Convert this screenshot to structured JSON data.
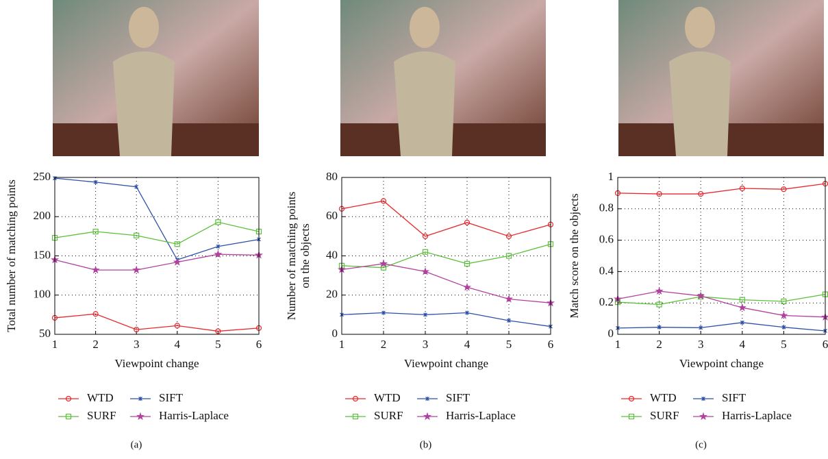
{
  "chart_data": [
    {
      "type": "line",
      "caption": "(a)",
      "xlabel": "Viewpoint change",
      "ylabel": [
        "Total number of matching points"
      ],
      "x": [
        1,
        2,
        3,
        4,
        5,
        6
      ],
      "xlim": [
        1,
        6
      ],
      "xticks": [
        1,
        2,
        3,
        4,
        5,
        6
      ],
      "ylim": [
        50,
        250
      ],
      "yticks": [
        50,
        100,
        150,
        200,
        250
      ],
      "grid": true,
      "legend": "bottom",
      "series": [
        {
          "name": "WTD",
          "color": "#e8262b",
          "marker": "circle",
          "values": [
            71,
            76,
            56,
            61,
            54,
            58
          ]
        },
        {
          "name": "SIFT",
          "color": "#2b4fa8",
          "marker": "x",
          "values": [
            249,
            244,
            238,
            145,
            162,
            171
          ]
        },
        {
          "name": "SURF",
          "color": "#5cbf3a",
          "marker": "square",
          "values": [
            173,
            181,
            176,
            165,
            193,
            181
          ]
        },
        {
          "name": "Harris-Laplace",
          "color": "#b2409e",
          "marker": "star",
          "values": [
            145,
            132,
            132,
            142,
            152,
            151
          ]
        }
      ]
    },
    {
      "type": "line",
      "caption": "(b)",
      "xlabel": "Viewpoint change",
      "ylabel": [
        "Number of matching points",
        "on the objects"
      ],
      "x": [
        1,
        2,
        3,
        4,
        5,
        6
      ],
      "xlim": [
        1,
        6
      ],
      "xticks": [
        1,
        2,
        3,
        4,
        5,
        6
      ],
      "ylim": [
        0,
        80
      ],
      "yticks": [
        0,
        20,
        40,
        60,
        80
      ],
      "grid": true,
      "legend": "bottom",
      "series": [
        {
          "name": "WTD",
          "color": "#e8262b",
          "marker": "circle",
          "values": [
            64,
            68,
            50,
            57,
            50,
            56
          ]
        },
        {
          "name": "SIFT",
          "color": "#2b4fa8",
          "marker": "x",
          "values": [
            10,
            11,
            10,
            11,
            7,
            4
          ]
        },
        {
          "name": "SURF",
          "color": "#5cbf3a",
          "marker": "square",
          "values": [
            35,
            34,
            42,
            36,
            40,
            46
          ]
        },
        {
          "name": "Harris-Laplace",
          "color": "#b2409e",
          "marker": "star",
          "values": [
            33,
            36,
            32,
            24,
            18,
            16
          ]
        }
      ]
    },
    {
      "type": "line",
      "caption": "(c)",
      "xlabel": "Viewpoint change",
      "ylabel": [
        "Match score on the objects"
      ],
      "x": [
        1,
        2,
        3,
        4,
        5,
        6
      ],
      "xlim": [
        1,
        6
      ],
      "xticks": [
        1,
        2,
        3,
        4,
        5,
        6
      ],
      "ylim": [
        0,
        1
      ],
      "yticks": [
        0,
        0.2,
        0.4,
        0.6,
        0.8,
        1
      ],
      "grid": true,
      "legend": "bottom",
      "series": [
        {
          "name": "WTD",
          "color": "#e8262b",
          "marker": "circle",
          "values": [
            0.9,
            0.895,
            0.895,
            0.93,
            0.925,
            0.96
          ]
        },
        {
          "name": "SIFT",
          "color": "#2b4fa8",
          "marker": "x",
          "values": [
            0.04,
            0.045,
            0.042,
            0.075,
            0.045,
            0.022
          ]
        },
        {
          "name": "SURF",
          "color": "#5cbf3a",
          "marker": "square",
          "values": [
            0.205,
            0.19,
            0.24,
            0.22,
            0.21,
            0.255
          ]
        },
        {
          "name": "Harris-Laplace",
          "color": "#b2409e",
          "marker": "star",
          "values": [
            0.225,
            0.275,
            0.245,
            0.17,
            0.12,
            0.11
          ]
        }
      ]
    }
  ]
}
